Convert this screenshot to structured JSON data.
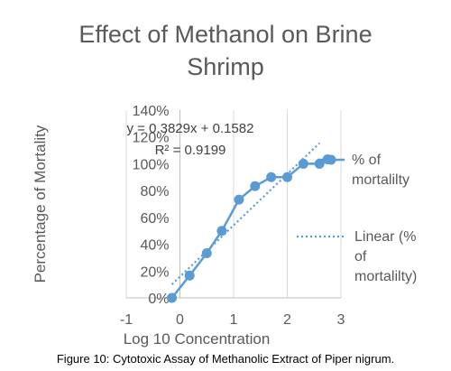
{
  "chart_data": {
    "type": "line",
    "title": "Effect of Methanol on Brine Shrimp",
    "title_lines": [
      "Effect of Methanol on Brine",
      "Shrimp"
    ],
    "xlabel": "Log 10 Concentration",
    "ylabel": "Percentage of Mortality",
    "xlim": [
      -1,
      3
    ],
    "ylim": [
      0,
      1.4
    ],
    "x_ticks": [
      -1,
      0,
      1,
      2,
      3
    ],
    "x_tick_labels": [
      "-1",
      "0",
      "1",
      "2",
      "3"
    ],
    "y_ticks": [
      0,
      0.2,
      0.4,
      0.6,
      0.8,
      1.0,
      1.2,
      1.4
    ],
    "y_tick_labels": [
      "0%",
      "20%",
      "40%",
      "60%",
      "80%",
      "100%",
      "120%",
      "140%"
    ],
    "grid": "vertical",
    "legend_position": "right",
    "series": [
      {
        "name": "% of mortalilty",
        "legend_lines": [
          "% of",
          "mortalilty"
        ],
        "color": "#5b9bd5",
        "x": [
          -0.15,
          0.18,
          0.5,
          0.78,
          1.1,
          1.4,
          1.7,
          2.0,
          2.3,
          2.6,
          2.75
        ],
        "y": [
          0.0,
          0.167,
          0.333,
          0.5,
          0.733,
          0.833,
          0.9,
          0.9,
          1.0,
          1.0,
          1.033
        ]
      }
    ],
    "trendline": {
      "name": "Linear (% of mortalilty)",
      "legend_lines": [
        "Linear (%",
        "of",
        "mortalilty)"
      ],
      "color": "#5b9bd5",
      "style": "dotted",
      "slope": 0.3829,
      "intercept": 0.1582,
      "x_range": [
        -0.15,
        2.6
      ],
      "equation": "y = 0.3829x + 0.1582",
      "r_squared": "R² = 0.9199"
    }
  },
  "caption": "Figure 10: Cytotoxic Assay of Methanolic Extract of Piper nigrum."
}
